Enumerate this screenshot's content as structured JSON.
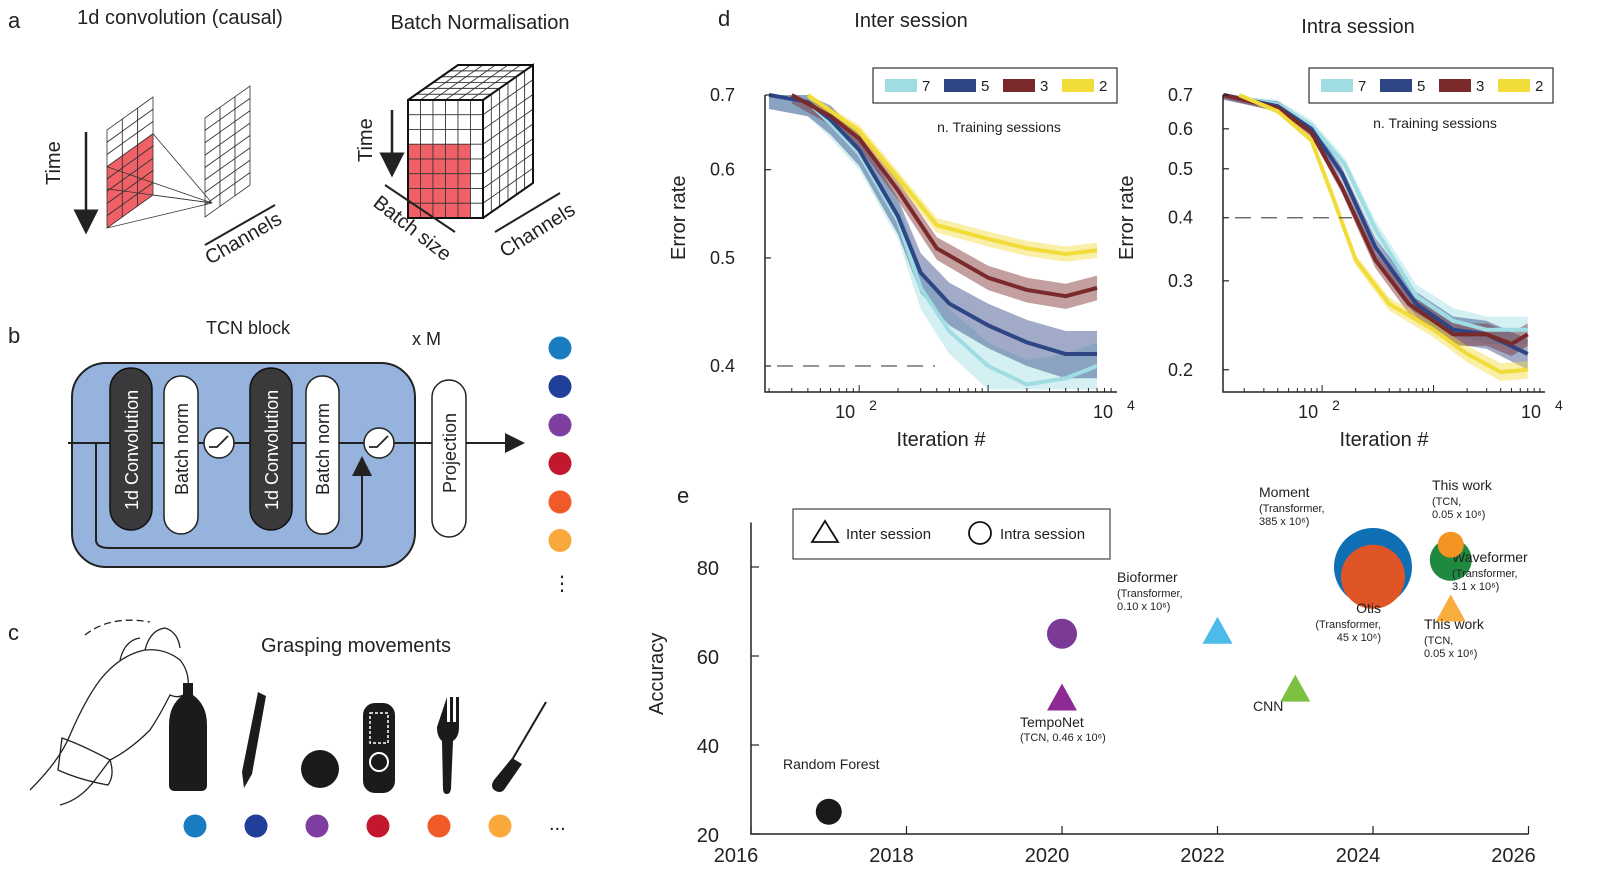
{
  "panels": {
    "a": {
      "label": "a",
      "conv_title": "1d convolution (causal)",
      "bn_title": "Batch Normalisation",
      "time_label": "Time",
      "time_label_bn": "Time",
      "channels_label": "Channels",
      "channels_label_bn": "Channels",
      "batch_size_label": "Batch size",
      "highlight_color": "#ef6166"
    },
    "b": {
      "label": "b",
      "block_title": "TCN block",
      "repeat_label": "x M",
      "conv1": "1d Convolution",
      "bn1": "Batch norm",
      "conv2": "1d Convolution",
      "bn2": "Batch norm",
      "projection": "Projection",
      "block_color": "#95b3dd",
      "output_class_colors": [
        "#1a7dc2",
        "#1f3f9a",
        "#7e3fa0",
        "#c3172e",
        "#f05a28",
        "#f9a93c"
      ],
      "more_indicator": "⋮",
      "activation_icon": "relu-icon"
    },
    "c": {
      "label": "c",
      "title": "Grasping movements",
      "objects": [
        {
          "icon": "bottle-icon",
          "color": "#1a7dc2"
        },
        {
          "icon": "pen-icon",
          "color": "#1f3f9a"
        },
        {
          "icon": "ball-icon",
          "color": "#7e3fa0"
        },
        {
          "icon": "remote-icon",
          "color": "#c3172e"
        },
        {
          "icon": "fork-icon",
          "color": "#f05a28"
        },
        {
          "icon": "screwdriver-icon",
          "color": "#f9a93c"
        }
      ],
      "ellipsis": "..."
    },
    "d": {
      "label": "d"
    },
    "e": {
      "label": "e"
    }
  },
  "chart_data": [
    {
      "type": "line",
      "title": "Inter session",
      "xlabel": "Iteration #",
      "ylabel": "Error rate",
      "xscale": "log",
      "yscale": "log",
      "xticks": [
        {
          "base": "10",
          "exp": "2"
        },
        {
          "base": "10",
          "exp": "4"
        }
      ],
      "yticks": [
        "0.7",
        "0.6",
        "0.5",
        "0.4"
      ],
      "ytick_values": [
        0.7,
        0.6,
        0.5,
        0.4
      ],
      "ylim": [
        0.381,
        0.7
      ],
      "reference_line": 0.4,
      "legend_title": "n. Training sessions",
      "legend_position": "top-right",
      "series": [
        {
          "name": "7",
          "color": "#9fdde3",
          "band": 0.02,
          "x": [
            20,
            40,
            60,
            100,
            200,
            300,
            500,
            1000,
            2000,
            4000,
            7000
          ],
          "y": [
            0.7,
            0.69,
            0.66,
            0.62,
            0.54,
            0.47,
            0.43,
            0.4,
            0.385,
            0.39,
            0.4
          ]
        },
        {
          "name": "5",
          "color": "#2e4586",
          "band": 0.02,
          "x": [
            20,
            40,
            60,
            100,
            200,
            300,
            500,
            1000,
            2000,
            4000,
            7000
          ],
          "y": [
            0.7,
            0.69,
            0.665,
            0.625,
            0.545,
            0.485,
            0.455,
            0.435,
            0.42,
            0.41,
            0.41
          ]
        },
        {
          "name": "3",
          "color": "#7a2a2a",
          "band": 0.012,
          "x": [
            30,
            60,
            100,
            200,
            400,
            1000,
            2000,
            4000,
            7000
          ],
          "y": [
            0.7,
            0.67,
            0.64,
            0.575,
            0.51,
            0.48,
            0.468,
            0.462,
            0.47
          ]
        },
        {
          "name": "2",
          "color": "#f2dc3a",
          "band": 0.008,
          "x": [
            40,
            100,
            200,
            400,
            1000,
            2000,
            4000,
            7000
          ],
          "y": [
            0.7,
            0.65,
            0.59,
            0.535,
            0.52,
            0.51,
            0.504,
            0.508
          ]
        }
      ]
    },
    {
      "type": "line",
      "title": "Intra session",
      "xlabel": "Iteration #",
      "ylabel": "Error rate",
      "xscale": "log",
      "yscale": "log",
      "xticks": [
        {
          "base": "10",
          "exp": "2"
        },
        {
          "base": "10",
          "exp": "4"
        }
      ],
      "yticks": [
        "0.7",
        "0.6",
        "0.5",
        "0.4",
        "0.3",
        "0.2"
      ],
      "ytick_values": [
        0.7,
        0.6,
        0.5,
        0.4,
        0.3,
        0.2
      ],
      "ylim": [
        0.181,
        0.7
      ],
      "reference_line": 0.4,
      "legend_title": "n. Training sessions",
      "legend_position": "top-right",
      "series": [
        {
          "name": "7",
          "color": "#9fdde3",
          "band": 0.015,
          "x": [
            13,
            40,
            80,
            160,
            300,
            700,
            1500,
            3000,
            7000
          ],
          "y": [
            0.7,
            0.67,
            0.61,
            0.51,
            0.38,
            0.28,
            0.25,
            0.24,
            0.24
          ]
        },
        {
          "name": "5",
          "color": "#2e4586",
          "band": 0.015,
          "x": [
            13,
            40,
            80,
            150,
            300,
            700,
            1500,
            3000,
            7000
          ],
          "y": [
            0.7,
            0.665,
            0.6,
            0.49,
            0.35,
            0.27,
            0.24,
            0.235,
            0.215
          ]
        },
        {
          "name": "3",
          "color": "#7a2a2a",
          "band": 0.012,
          "x": [
            13,
            40,
            80,
            150,
            300,
            600,
            1500,
            3000,
            5000,
            7000
          ],
          "y": [
            0.7,
            0.66,
            0.59,
            0.46,
            0.33,
            0.27,
            0.235,
            0.235,
            0.225,
            0.235
          ]
        },
        {
          "name": "2",
          "color": "#f2dc3a",
          "band": 0.008,
          "x": [
            18,
            40,
            80,
            120,
            200,
            400,
            1000,
            2000,
            4000,
            7000
          ],
          "y": [
            0.7,
            0.65,
            0.57,
            0.45,
            0.33,
            0.27,
            0.24,
            0.215,
            0.198,
            0.2
          ]
        }
      ]
    },
    {
      "type": "scatter",
      "xlabel": "",
      "ylabel": "Accuracy",
      "xlim": [
        2016,
        2026
      ],
      "ylim": [
        20,
        90
      ],
      "xticks": [
        "2016",
        "2018",
        "2020",
        "2022",
        "2024",
        "2026"
      ],
      "xtick_values": [
        2016,
        2018,
        2020,
        2022,
        2024,
        2026
      ],
      "yticks": [
        "20",
        "40",
        "60",
        "80"
      ],
      "ytick_values": [
        20,
        40,
        60,
        80
      ],
      "legend": {
        "inter": "Inter session",
        "intra": "Intra session",
        "position": "top"
      },
      "points": [
        {
          "name": "Random Forest",
          "detail": "",
          "x": 2017,
          "y": 25,
          "marker": "circle",
          "color": "#1a1a1a"
        },
        {
          "name": "",
          "detail": "",
          "x": 2020,
          "y": 65,
          "marker": "circle",
          "color": "#7b3a96"
        },
        {
          "name": "TempoNet",
          "detail": "(TCN, 0.46 x 10⁶)",
          "x": 2020,
          "y": 50,
          "marker": "triangle",
          "color": "#8e2a94"
        },
        {
          "name": "Bioformer",
          "detail": "(Transformer, 0.10 x 10⁶)",
          "x": 2022,
          "y": 65,
          "marker": "triangle",
          "color": "#4dbbea"
        },
        {
          "name": "CNN",
          "detail": "",
          "x": 2023,
          "y": 52,
          "marker": "triangle",
          "color": "#7dc142"
        },
        {
          "name": "Moment",
          "detail": "(Transformer, 385 x 10⁶)",
          "x": 2024,
          "y": 80,
          "marker": "circle",
          "color": "#0f6fb5"
        },
        {
          "name": "Otis",
          "detail": "(Transformer, 45 x 10⁶)",
          "x": 2024,
          "y": 77.8,
          "marker": "circle",
          "color": "#df5526"
        },
        {
          "name": "Waveformer",
          "detail": "(Transformer, 3.1 x 10⁶)",
          "x": 2025,
          "y": 81.6,
          "marker": "circle",
          "color": "#1f8a3f"
        },
        {
          "name": "This work",
          "detail": "(TCN, 0.05 x 10⁶)",
          "x": 2025,
          "y": 85,
          "marker": "circle",
          "color": "#f29323"
        },
        {
          "name": "This work",
          "detail": "(TCN, 0.05 x 10⁶)",
          "x": 2025,
          "y": 70,
          "marker": "triangle",
          "color": "#f7ae3c"
        }
      ]
    }
  ]
}
